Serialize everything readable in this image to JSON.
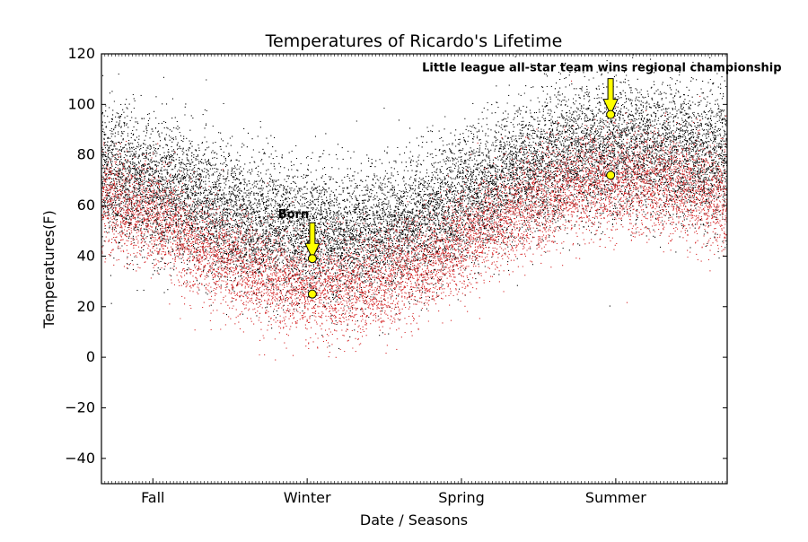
{
  "chart_data": {
    "type": "scatter",
    "title": "Temperatures of Ricardo's Lifetime",
    "xlabel": "Date / Seasons",
    "ylabel": "Temperatures(F)",
    "ylim": [
      -50,
      120
    ],
    "yticks": [
      -40,
      -20,
      0,
      20,
      40,
      60,
      80,
      100,
      120
    ],
    "yticklabels": [
      "−40",
      "−20",
      "0",
      "20",
      "40",
      "60",
      "80",
      "100",
      "120"
    ],
    "x_domain": [
      0,
      365
    ],
    "xticks": [
      {
        "value": 30,
        "label": "Fall"
      },
      {
        "value": 120,
        "label": "Winter"
      },
      {
        "value": 210,
        "label": "Spring"
      },
      {
        "value": 300,
        "label": "Summer"
      }
    ],
    "grid": false,
    "series": [
      {
        "role": "highs",
        "color": "#000000",
        "points_per_day": 40,
        "trend_day": [
          0,
          30,
          60,
          90,
          120,
          150,
          180,
          210,
          240,
          270,
          300,
          330,
          365
        ],
        "trend_mean": [
          72,
          68,
          60,
          52,
          48,
          47,
          52,
          62,
          72,
          80,
          83,
          82,
          78
        ],
        "spread": 13
      },
      {
        "role": "lows",
        "color": "#d62728",
        "points_per_day": 25,
        "trend_day": [
          0,
          30,
          60,
          90,
          120,
          150,
          180,
          210,
          240,
          270,
          300,
          330,
          365
        ],
        "trend_mean": [
          62,
          55,
          42,
          32,
          27,
          28,
          34,
          45,
          58,
          66,
          70,
          68,
          62
        ],
        "spread": 10
      }
    ],
    "highlighted_points": [
      {
        "x": 123,
        "y": 39,
        "color": "#ffff00"
      },
      {
        "x": 123,
        "y": 25,
        "color": "#ffff00"
      },
      {
        "x": 297,
        "y": 96,
        "color": "#ffff00"
      },
      {
        "x": 297,
        "y": 72,
        "color": "#ffff00"
      }
    ],
    "annotations": [
      {
        "text": "Born",
        "target": {
          "x": 123,
          "y": 39
        },
        "text_at": {
          "x": 103,
          "y": 55
        },
        "arrow_color": "#ffff00"
      },
      {
        "text": "Little league all-star team wins regional championship",
        "target": {
          "x": 297,
          "y": 96
        },
        "text_at": {
          "x": 187,
          "y": 113
        },
        "arrow_color": "#ffff00"
      }
    ]
  }
}
